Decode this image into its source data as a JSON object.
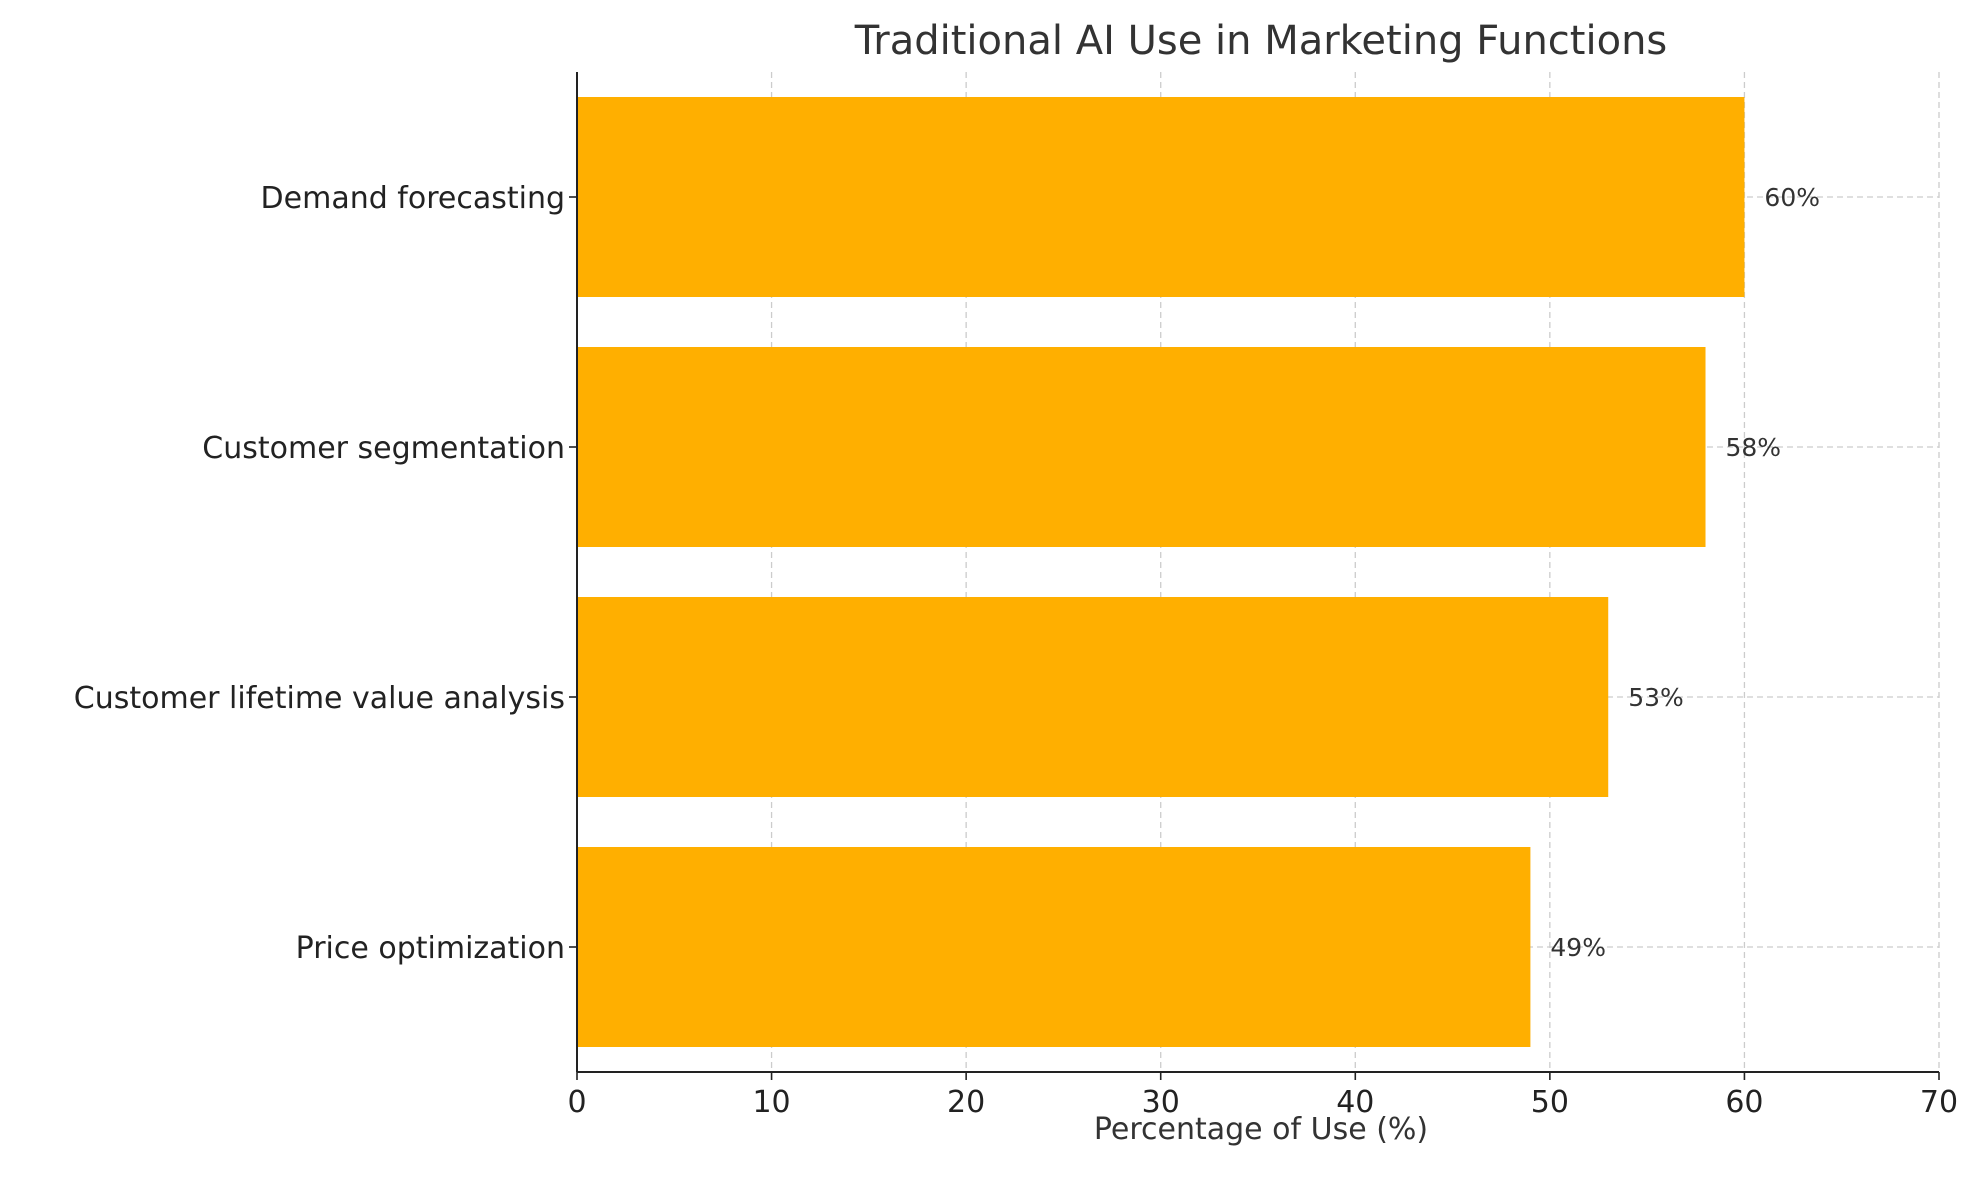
{
  "chart_data": {
    "type": "bar",
    "orientation": "horizontal",
    "title": "Traditional AI Use in Marketing Functions",
    "xlabel": "Percentage of Use (%)",
    "ylabel": "",
    "categories": [
      "Price optimization",
      "Customer lifetime value analysis",
      "Customer segmentation",
      "Demand forecasting"
    ],
    "values": [
      49,
      53,
      58,
      60
    ],
    "data_labels": [
      "49%",
      "53%",
      "58%",
      "60%"
    ],
    "xlim": [
      0,
      70
    ],
    "xticks": [
      0,
      10,
      20,
      30,
      40,
      50,
      60,
      70
    ],
    "xtick_labels": [
      "0",
      "10",
      "20",
      "30",
      "40",
      "50",
      "60",
      "70"
    ],
    "grid": true,
    "bar_color": "#FFAF00"
  }
}
